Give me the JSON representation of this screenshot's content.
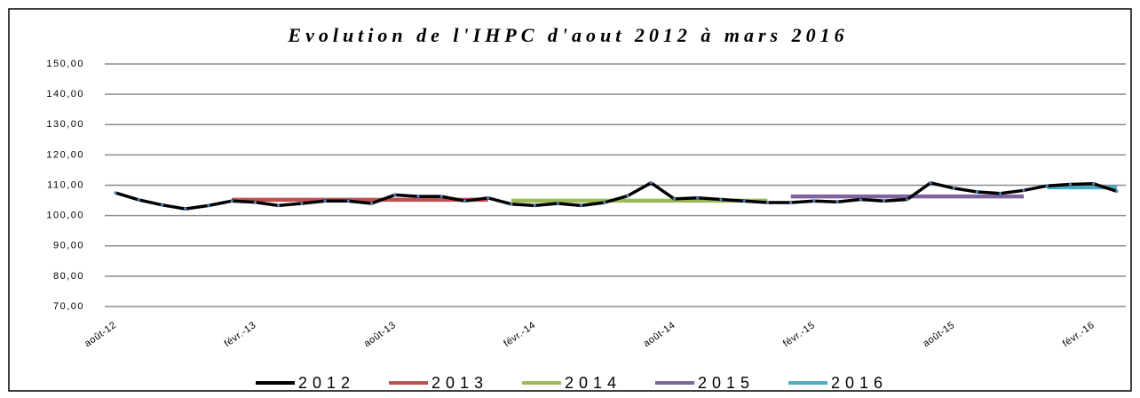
{
  "chart_data": {
    "type": "line",
    "title": "Evolution de l'IHPC d'aout 2012 à mars 2016",
    "categories": [
      "août-12",
      null,
      null,
      null,
      null,
      null,
      "févr.-13",
      null,
      null,
      null,
      null,
      null,
      "août-13",
      null,
      null,
      null,
      null,
      null,
      "févr.-14",
      null,
      null,
      null,
      null,
      null,
      "août-14",
      null,
      null,
      null,
      null,
      null,
      "févr.-15",
      null,
      null,
      null,
      null,
      null,
      "août-15",
      null,
      null,
      null,
      null,
      null,
      "févr.-16",
      null
    ],
    "series": [
      {
        "name": "2012",
        "color": "#000000",
        "values": [
          107.5,
          105.2,
          103.5,
          102.2,
          103.3,
          104.8,
          104.4,
          103.3,
          104.0,
          104.8,
          104.8,
          104.0,
          106.8,
          106.3,
          106.3,
          104.8,
          105.8,
          103.8,
          103.3,
          104.0,
          103.3,
          104.3,
          106.5,
          110.8,
          105.5,
          105.8,
          105.3,
          104.8,
          104.3,
          104.3,
          104.8,
          104.5,
          105.3,
          104.8,
          105.3,
          110.8,
          109.0,
          107.8,
          107.3,
          108.3,
          109.8,
          110.3,
          110.5,
          108.0
        ]
      },
      {
        "name": "2013",
        "color": "#c0504d",
        "values": [
          null,
          null,
          null,
          null,
          null,
          105.2,
          105.2,
          105.2,
          105.2,
          105.2,
          105.2,
          105.2,
          105.2,
          105.2,
          105.2,
          105.2,
          105.2,
          null,
          null,
          null,
          null,
          null,
          null,
          null,
          null,
          null,
          null,
          null,
          null,
          null,
          null,
          null,
          null,
          null,
          null,
          null,
          null,
          null,
          null,
          null,
          null,
          null,
          null,
          null
        ]
      },
      {
        "name": "2014",
        "color": "#9bbb59",
        "values": [
          null,
          null,
          null,
          null,
          null,
          null,
          null,
          null,
          null,
          null,
          null,
          null,
          null,
          null,
          null,
          null,
          null,
          104.9,
          104.9,
          104.9,
          104.9,
          104.9,
          104.9,
          104.9,
          104.9,
          104.9,
          104.9,
          104.9,
          104.9,
          null,
          null,
          null,
          null,
          null,
          null,
          null,
          null,
          null,
          null,
          null,
          null,
          null,
          null,
          null
        ]
      },
      {
        "name": "2015",
        "color": "#8064a2",
        "values": [
          null,
          null,
          null,
          null,
          null,
          null,
          null,
          null,
          null,
          null,
          null,
          null,
          null,
          null,
          null,
          null,
          null,
          null,
          null,
          null,
          null,
          null,
          null,
          null,
          null,
          null,
          null,
          null,
          null,
          106.3,
          106.3,
          106.3,
          106.3,
          106.3,
          106.3,
          106.3,
          106.3,
          106.3,
          106.3,
          106.3,
          null,
          null,
          null,
          null
        ]
      },
      {
        "name": "2016",
        "color": "#4bacc6",
        "values": [
          null,
          null,
          null,
          null,
          null,
          null,
          null,
          null,
          null,
          null,
          null,
          null,
          null,
          null,
          null,
          null,
          null,
          null,
          null,
          null,
          null,
          null,
          null,
          null,
          null,
          null,
          null,
          null,
          null,
          null,
          null,
          null,
          null,
          null,
          null,
          null,
          null,
          null,
          null,
          null,
          109.3,
          109.3,
          109.3,
          109.3
        ]
      }
    ],
    "ylim": [
      70,
      150
    ],
    "yticks": [
      {
        "value": 70,
        "label": "70,00"
      },
      {
        "value": 80,
        "label": "80,00"
      },
      {
        "value": 90,
        "label": "90,00"
      },
      {
        "value": 100,
        "label": "100,00"
      },
      {
        "value": 110,
        "label": "110,00"
      },
      {
        "value": 120,
        "label": "120,00"
      },
      {
        "value": 130,
        "label": "130,00"
      },
      {
        "value": 140,
        "label": "140,00"
      },
      {
        "value": 150,
        "label": "150,00"
      }
    ],
    "grid": true,
    "legend": "bottom"
  }
}
